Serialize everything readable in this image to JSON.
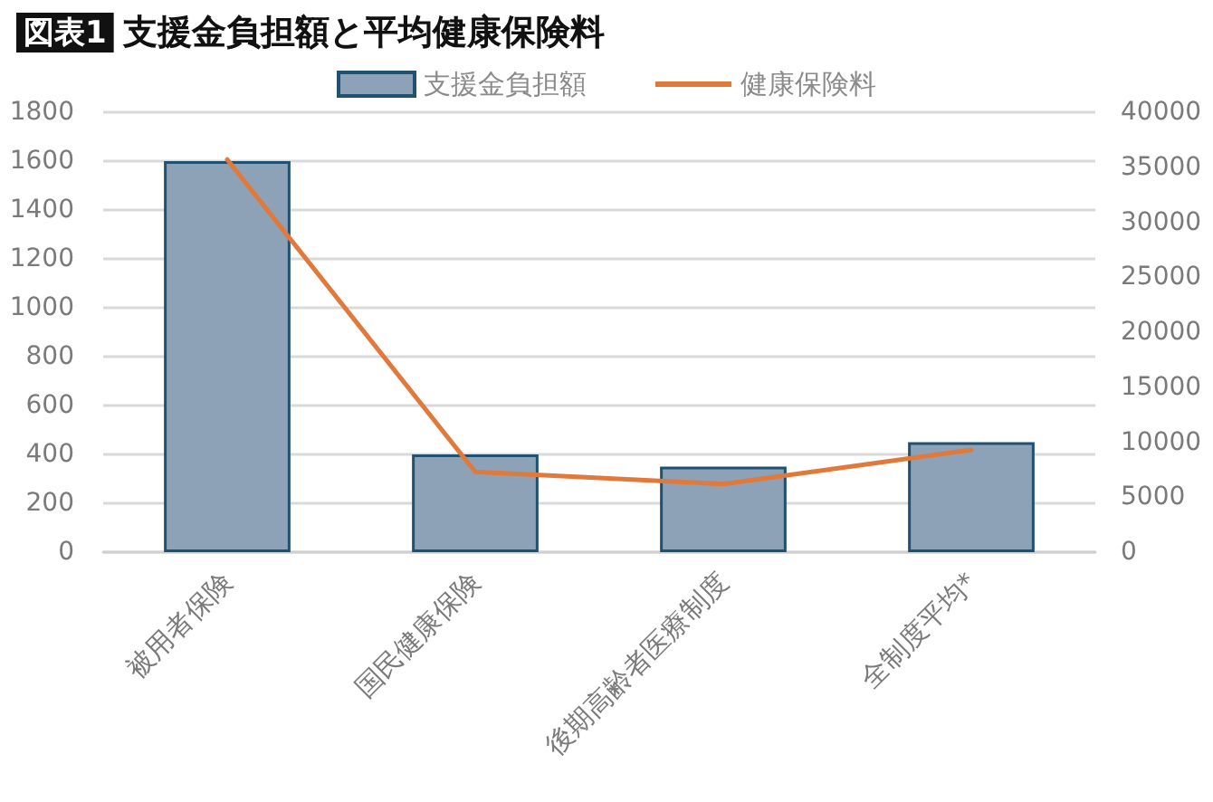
{
  "chart_data": {
    "type": "bar",
    "title": "図表1 支援金負担額と平均健康保険料",
    "categories": [
      "被用者保険",
      "国民健康保険",
      "後期高齢者医療制度",
      "全制度平均*"
    ],
    "series": [
      {
        "name": "支援金負担額",
        "color": "#8da2b6",
        "values": [
          1600,
          400,
          350,
          450
        ]
      },
      {
        "name": "健康保険料",
        "type": "line",
        "axis": "y2",
        "color": "#e0793a",
        "values": [
          35700,
          7300,
          6200,
          9300
        ]
      }
    ],
    "ylim": [
      0,
      1800
    ],
    "yticks": [
      0,
      200,
      400,
      600,
      800,
      1000,
      1200,
      1400,
      1600,
      1800
    ],
    "y2lim": [
      0,
      40000
    ],
    "y2ticks": [
      0,
      5000,
      10000,
      15000,
      20000,
      25000,
      30000,
      35000,
      40000
    ],
    "grid": "y",
    "legend": "top",
    "marker": "none"
  }
}
